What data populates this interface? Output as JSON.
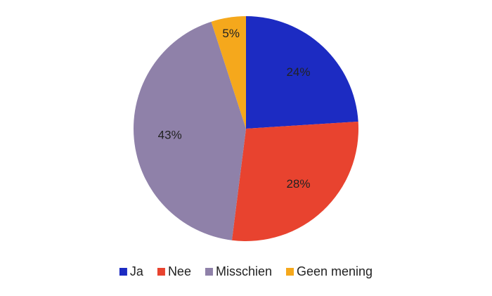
{
  "chart_data": {
    "type": "pie",
    "categories": [
      "Ja",
      "Nee",
      "Misschien",
      "Geen mening"
    ],
    "values": [
      24,
      28,
      43,
      5
    ],
    "value_labels": [
      "24%",
      "28%",
      "43%",
      "5%"
    ],
    "colors": [
      "#1c2bc2",
      "#e8432f",
      "#8f81a9",
      "#f5a81c"
    ],
    "legend": "bottom"
  }
}
